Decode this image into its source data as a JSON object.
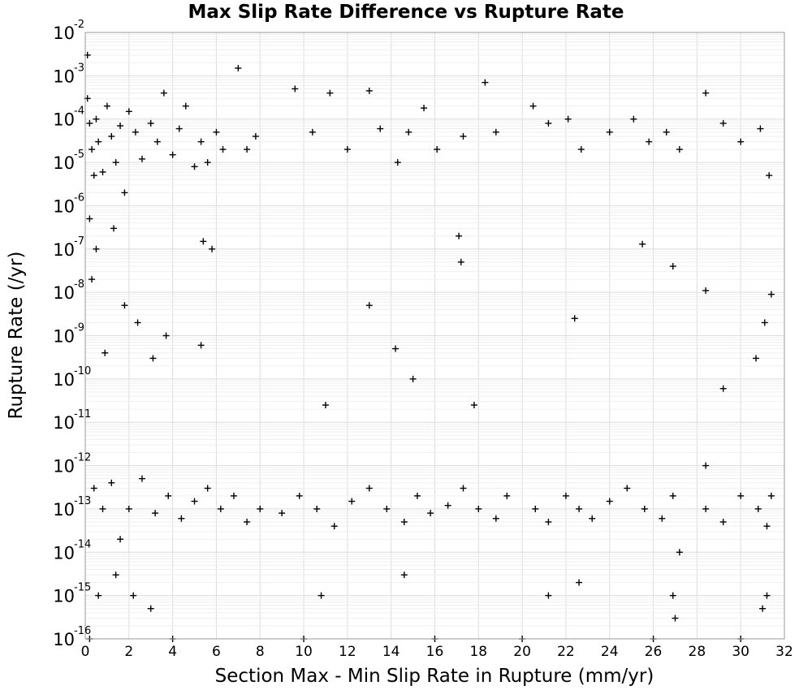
{
  "chart_data": {
    "type": "scatter",
    "title": "Max Slip Rate Difference vs Rupture Rate",
    "xlabel": "Section Max - Min Slip Rate in Rupture (mm/yr)",
    "ylabel": "Rupture Rate (/yr)",
    "xlim": [
      0,
      32
    ],
    "ylim": [
      1e-16,
      0.01
    ],
    "y_scale": "log",
    "grid": true,
    "marker": "+",
    "marker_color": "#000000",
    "x_ticks": [
      "0",
      "2",
      "4",
      "6",
      "8",
      "10",
      "12",
      "14",
      "16",
      "18",
      "20",
      "22",
      "24",
      "26",
      "28",
      "30",
      "32"
    ],
    "y_ticks": [
      {
        "base": "10",
        "exp": "-2"
      },
      {
        "base": "10",
        "exp": "-3"
      },
      {
        "base": "10",
        "exp": "-4"
      },
      {
        "base": "10",
        "exp": "-5"
      },
      {
        "base": "10",
        "exp": "-6"
      },
      {
        "base": "10",
        "exp": "-7"
      },
      {
        "base": "10",
        "exp": "-8"
      },
      {
        "base": "10",
        "exp": "-9"
      },
      {
        "base": "10",
        "exp": "-10"
      },
      {
        "base": "10",
        "exp": "-11"
      },
      {
        "base": "10",
        "exp": "-12"
      },
      {
        "base": "10",
        "exp": "-13"
      },
      {
        "base": "10",
        "exp": "-14"
      },
      {
        "base": "10",
        "exp": "-15"
      },
      {
        "base": "10",
        "exp": "-16"
      },
      {
        "base": "10",
        "exp": ""
      }
    ],
    "series": [
      {
        "points": [
          [
            0.1,
            0.0003
          ],
          [
            0.2,
            8e-05
          ],
          [
            0.3,
            2e-05
          ],
          [
            0.4,
            5e-06
          ],
          [
            0.5,
            0.0001
          ],
          [
            0.6,
            3e-05
          ],
          [
            0.8,
            6e-06
          ],
          [
            1.0,
            0.0002
          ],
          [
            1.2,
            4e-05
          ],
          [
            1.4,
            1e-05
          ],
          [
            1.6,
            7e-05
          ],
          [
            1.8,
            2e-06
          ],
          [
            2.0,
            0.00015
          ],
          [
            2.3,
            5e-05
          ],
          [
            2.6,
            1.2e-05
          ],
          [
            3.0,
            8e-05
          ],
          [
            3.3,
            3e-05
          ],
          [
            3.6,
            0.0004
          ],
          [
            4.0,
            1.5e-05
          ],
          [
            4.3,
            6e-05
          ],
          [
            4.6,
            0.0002
          ],
          [
            5.0,
            8e-06
          ],
          [
            5.3,
            3e-05
          ],
          [
            5.6,
            1e-05
          ],
          [
            6.0,
            5e-05
          ],
          [
            6.3,
            2e-05
          ],
          [
            7.0,
            0.0015
          ],
          [
            7.4,
            2e-05
          ],
          [
            7.8,
            4e-05
          ],
          [
            9.6,
            0.0005
          ],
          [
            10.4,
            5e-05
          ],
          [
            11.2,
            0.0004
          ],
          [
            12.0,
            2e-05
          ],
          [
            13.0,
            0.00045
          ],
          [
            13.5,
            6e-05
          ],
          [
            14.3,
            1e-05
          ],
          [
            14.8,
            5e-05
          ],
          [
            15.5,
            0.00018
          ],
          [
            16.1,
            2e-05
          ],
          [
            17.3,
            4e-05
          ],
          [
            18.3,
            0.0007
          ],
          [
            18.8,
            5e-05
          ],
          [
            20.5,
            0.0002
          ],
          [
            21.2,
            8e-05
          ],
          [
            22.1,
            0.0001
          ],
          [
            22.7,
            2e-05
          ],
          [
            24.0,
            5e-05
          ],
          [
            25.1,
            0.0001
          ],
          [
            25.8,
            3e-05
          ],
          [
            26.6,
            5e-05
          ],
          [
            27.2,
            2e-05
          ],
          [
            28.4,
            0.0004
          ],
          [
            29.2,
            8e-05
          ],
          [
            30.0,
            3e-05
          ],
          [
            30.9,
            6e-05
          ],
          [
            31.3,
            5e-06
          ],
          [
            0.2,
            5e-07
          ],
          [
            0.5,
            1e-07
          ],
          [
            1.3,
            3e-07
          ],
          [
            5.4,
            1.5e-07
          ],
          [
            5.8,
            1e-07
          ],
          [
            13.0,
            5e-09
          ],
          [
            14.2,
            5e-10
          ],
          [
            15.0,
            1e-10
          ],
          [
            17.1,
            2e-07
          ],
          [
            17.2,
            5e-08
          ],
          [
            22.4,
            2.5e-09
          ],
          [
            25.5,
            1.3e-07
          ],
          [
            26.9,
            4e-08
          ],
          [
            28.4,
            1.1e-08
          ],
          [
            30.7,
            3e-10
          ],
          [
            31.1,
            2e-09
          ],
          [
            31.4,
            9e-09
          ],
          [
            0.3,
            2e-08
          ],
          [
            1.8,
            5e-09
          ],
          [
            2.4,
            2e-09
          ],
          [
            3.7,
            1e-09
          ],
          [
            5.3,
            6e-10
          ],
          [
            0.9,
            4e-10
          ],
          [
            3.1,
            3e-10
          ],
          [
            0.4,
            3e-13
          ],
          [
            0.8,
            1e-13
          ],
          [
            1.2,
            4e-13
          ],
          [
            1.6,
            2e-14
          ],
          [
            2.0,
            1e-13
          ],
          [
            2.6,
            5e-13
          ],
          [
            3.2,
            8e-14
          ],
          [
            3.8,
            2e-13
          ],
          [
            4.4,
            6e-14
          ],
          [
            5.0,
            1.5e-13
          ],
          [
            5.6,
            3e-13
          ],
          [
            6.2,
            1e-13
          ],
          [
            6.8,
            2e-13
          ],
          [
            7.4,
            5e-14
          ],
          [
            8.0,
            1e-13
          ],
          [
            9.0,
            8e-14
          ],
          [
            9.8,
            2e-13
          ],
          [
            10.6,
            1e-13
          ],
          [
            11.4,
            4e-14
          ],
          [
            12.2,
            1.5e-13
          ],
          [
            13.0,
            3e-13
          ],
          [
            13.8,
            1e-13
          ],
          [
            14.6,
            5e-14
          ],
          [
            15.2,
            2e-13
          ],
          [
            15.8,
            8e-14
          ],
          [
            16.6,
            1.2e-13
          ],
          [
            17.3,
            3e-13
          ],
          [
            18.0,
            1e-13
          ],
          [
            18.8,
            6e-14
          ],
          [
            19.3,
            2e-13
          ],
          [
            20.6,
            1e-13
          ],
          [
            21.2,
            5e-14
          ],
          [
            22.0,
            2e-13
          ],
          [
            22.6,
            1e-13
          ],
          [
            23.2,
            6e-14
          ],
          [
            24.0,
            1.5e-13
          ],
          [
            24.8,
            3e-13
          ],
          [
            25.6,
            1e-13
          ],
          [
            26.4,
            6e-14
          ],
          [
            26.9,
            2e-13
          ],
          [
            27.2,
            1e-14
          ],
          [
            28.4,
            1e-13
          ],
          [
            29.2,
            5e-14
          ],
          [
            30.0,
            2e-13
          ],
          [
            30.8,
            1e-13
          ],
          [
            31.2,
            4e-14
          ],
          [
            31.4,
            2e-13
          ],
          [
            0.6,
            1e-15
          ],
          [
            1.4,
            3e-15
          ],
          [
            2.2,
            1e-15
          ],
          [
            3.0,
            5e-16
          ],
          [
            10.8,
            1e-15
          ],
          [
            14.6,
            3e-15
          ],
          [
            21.2,
            1e-15
          ],
          [
            22.6,
            2e-15
          ],
          [
            26.9,
            1e-15
          ],
          [
            27.0,
            3e-16
          ],
          [
            31.0,
            5e-16
          ],
          [
            31.2,
            1e-15
          ],
          [
            0.2,
            1e-16
          ],
          [
            4.0,
            1e-16
          ],
          [
            10.0,
            1e-16
          ],
          [
            16.0,
            1e-16
          ],
          [
            20.0,
            1e-16
          ],
          [
            26.0,
            1e-16
          ],
          [
            30.0,
            1e-16
          ],
          [
            11.0,
            2.5e-11
          ],
          [
            17.8,
            2.5e-11
          ],
          [
            28.4,
            1e-12
          ],
          [
            29.2,
            6e-11
          ],
          [
            0.1,
            0.003
          ]
        ]
      }
    ]
  }
}
